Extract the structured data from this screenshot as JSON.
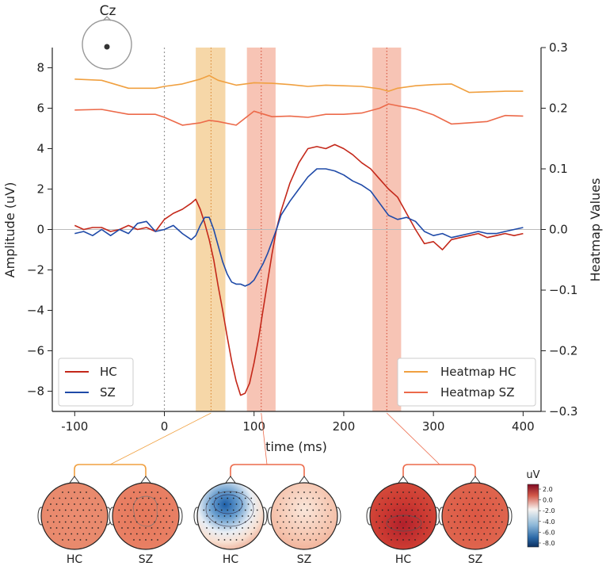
{
  "chart_data": {
    "type": "line",
    "channel": "Cz",
    "xlabel": "time (ms)",
    "ylabel": "Amplitude (uV)",
    "y2label": "Heatmap Values",
    "xlim": [
      -125,
      420
    ],
    "ylim": [
      -9.0,
      9.0
    ],
    "y2lim": [
      -0.3,
      0.3
    ],
    "xticks": [
      "-100",
      "0",
      "100",
      "200",
      "300",
      "400"
    ],
    "yticks": [
      "−8",
      "−6",
      "−4",
      "−2",
      "0",
      "2",
      "4",
      "6",
      "8"
    ],
    "y2ticks": [
      "−0.3",
      "−0.2",
      "−0.1",
      "0.0",
      "0.1",
      "0.2",
      "0.3"
    ],
    "bands": [
      {
        "from": 35,
        "to": 68,
        "center": 52,
        "color": "#f3c98b"
      },
      {
        "from": 92,
        "to": 124,
        "center": 108,
        "color": "#f4b09c"
      },
      {
        "from": 232,
        "to": 264,
        "center": 248,
        "color": "#f4b09c"
      }
    ],
    "series": [
      {
        "name": "HC",
        "axis": "left",
        "color": "#c4281a",
        "x": [
          -100,
          -90,
          -80,
          -70,
          -60,
          -50,
          -40,
          -30,
          -20,
          -10,
          0,
          10,
          20,
          30,
          35,
          40,
          45,
          50,
          55,
          60,
          65,
          70,
          75,
          80,
          85,
          90,
          95,
          100,
          105,
          110,
          115,
          120,
          125,
          130,
          140,
          150,
          160,
          170,
          180,
          190,
          200,
          210,
          220,
          230,
          240,
          250,
          260,
          270,
          280,
          290,
          300,
          310,
          320,
          330,
          340,
          350,
          360,
          370,
          380,
          390,
          400
        ],
        "values": [
          0.2,
          0.0,
          0.1,
          0.1,
          -0.1,
          0.0,
          0.2,
          0.0,
          0.1,
          -0.1,
          0.5,
          0.8,
          1.0,
          1.3,
          1.5,
          1.0,
          0.3,
          -0.5,
          -1.5,
          -2.8,
          -4.0,
          -5.3,
          -6.5,
          -7.5,
          -8.2,
          -8.1,
          -7.6,
          -6.6,
          -5.4,
          -4.0,
          -2.6,
          -1.2,
          0.0,
          0.9,
          2.3,
          3.3,
          4.0,
          4.1,
          4.0,
          4.2,
          4.0,
          3.7,
          3.3,
          3.0,
          2.5,
          2.0,
          1.6,
          0.8,
          0.0,
          -0.7,
          -0.6,
          -1.0,
          -0.5,
          -0.4,
          -0.3,
          -0.2,
          -0.4,
          -0.3,
          -0.2,
          -0.3,
          -0.2
        ]
      },
      {
        "name": "SZ",
        "axis": "left",
        "color": "#1f4aa8",
        "x": [
          -100,
          -90,
          -80,
          -70,
          -60,
          -50,
          -40,
          -30,
          -20,
          -10,
          0,
          10,
          20,
          30,
          35,
          40,
          45,
          50,
          55,
          60,
          65,
          70,
          75,
          80,
          85,
          90,
          95,
          100,
          105,
          110,
          115,
          120,
          125,
          130,
          140,
          150,
          160,
          170,
          180,
          190,
          200,
          210,
          220,
          230,
          240,
          250,
          260,
          270,
          280,
          290,
          300,
          310,
          320,
          330,
          340,
          350,
          360,
          370,
          380,
          390,
          400
        ],
        "values": [
          -0.2,
          -0.1,
          -0.3,
          0.0,
          -0.3,
          0.0,
          -0.2,
          0.3,
          0.4,
          -0.1,
          0.0,
          0.2,
          -0.2,
          -0.5,
          -0.3,
          0.2,
          0.6,
          0.6,
          0.0,
          -0.8,
          -1.6,
          -2.2,
          -2.6,
          -2.7,
          -2.7,
          -2.8,
          -2.7,
          -2.5,
          -2.1,
          -1.7,
          -1.2,
          -0.6,
          0.0,
          0.7,
          1.4,
          2.0,
          2.6,
          3.0,
          3.0,
          2.9,
          2.7,
          2.4,
          2.2,
          1.9,
          1.3,
          0.7,
          0.5,
          0.6,
          0.4,
          -0.1,
          -0.3,
          -0.2,
          -0.4,
          -0.3,
          -0.2,
          -0.1,
          -0.2,
          -0.2,
          -0.1,
          0.0,
          0.1
        ]
      },
      {
        "name": "Heatmap HC",
        "axis": "right",
        "color": "#f0a040",
        "x": [
          -100,
          -70,
          -40,
          -10,
          0,
          20,
          40,
          50,
          60,
          80,
          100,
          120,
          140,
          160,
          180,
          200,
          220,
          240,
          250,
          260,
          280,
          300,
          320,
          340,
          360,
          380,
          400
        ],
        "values": [
          0.248,
          0.246,
          0.233,
          0.233,
          0.236,
          0.24,
          0.248,
          0.254,
          0.246,
          0.238,
          0.242,
          0.241,
          0.239,
          0.236,
          0.238,
          0.237,
          0.236,
          0.232,
          0.228,
          0.233,
          0.237,
          0.239,
          0.24,
          0.226,
          0.227,
          0.228,
          0.228
        ]
      },
      {
        "name": "Heatmap SZ",
        "axis": "right",
        "color": "#ec6a4a",
        "x": [
          -100,
          -70,
          -40,
          -10,
          0,
          20,
          40,
          50,
          60,
          80,
          100,
          120,
          140,
          160,
          180,
          200,
          220,
          240,
          250,
          260,
          280,
          300,
          320,
          340,
          360,
          380,
          400
        ],
        "values": [
          0.197,
          0.198,
          0.19,
          0.19,
          0.185,
          0.172,
          0.176,
          0.18,
          0.178,
          0.172,
          0.195,
          0.186,
          0.187,
          0.185,
          0.19,
          0.19,
          0.192,
          0.2,
          0.207,
          0.204,
          0.199,
          0.189,
          0.174,
          0.176,
          0.178,
          0.188,
          0.187
        ]
      }
    ],
    "legend_left": [
      "HC",
      "SZ"
    ],
    "legend_right": [
      "Heatmap HC",
      "Heatmap SZ"
    ]
  },
  "topomaps": {
    "groups": [
      {
        "band": 1,
        "maps": [
          {
            "label": "HC",
            "fill": "#e9866b"
          },
          {
            "label": "SZ",
            "fill": "#e57a5c"
          }
        ]
      },
      {
        "band": 2,
        "maps": [
          {
            "label": "HC",
            "fill": "blue"
          },
          {
            "label": "SZ",
            "fill": "#f4c3ad"
          }
        ]
      },
      {
        "band": 3,
        "maps": [
          {
            "label": "HC",
            "fill": "#d23c30"
          },
          {
            "label": "SZ",
            "fill": "#df5b45"
          }
        ]
      }
    ],
    "colorbar": {
      "title": "uV",
      "ticks": [
        "2.0",
        "0.0",
        "-2.0",
        "-4.0",
        "-6.0",
        "-8.0"
      ]
    }
  }
}
